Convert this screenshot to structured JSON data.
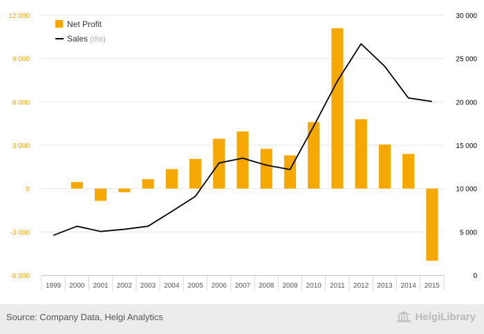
{
  "chart_data": {
    "type": "bar",
    "title": "",
    "xlabel": "",
    "ylabel": "",
    "categories": [
      "1999",
      "2000",
      "2001",
      "2002",
      "2003",
      "2004",
      "2005",
      "2006",
      "2007",
      "2008",
      "2009",
      "2010",
      "2011",
      "2012",
      "2013",
      "2014",
      "2015"
    ],
    "series": [
      {
        "name": "Net Profit",
        "type": "bar",
        "axis": "left",
        "color": "#f5a800",
        "values": [
          null,
          450,
          -850,
          -250,
          650,
          1350,
          2050,
          3450,
          3950,
          2750,
          2300,
          4600,
          11100,
          4800,
          3050,
          2400,
          -5000
        ]
      },
      {
        "name": "Sales",
        "type": "line",
        "axis": "right",
        "color": "#000000",
        "values": [
          4600,
          5650,
          5050,
          5300,
          5650,
          7350,
          9100,
          12950,
          13500,
          12700,
          12200,
          17200,
          22400,
          26700,
          24100,
          20450,
          20050
        ]
      }
    ],
    "y_left": {
      "range": [
        -6000,
        12000
      ],
      "ticks": [
        -6000,
        -3000,
        0,
        3000,
        6000,
        9000,
        12000
      ],
      "tick_labels": [
        "-6 000",
        "-3 000",
        "0",
        "3 000",
        "6 000",
        "9 000",
        "12 000"
      ],
      "label_color": "#f5a800"
    },
    "y_right": {
      "range": [
        0,
        30000
      ],
      "ticks": [
        0,
        5000,
        10000,
        15000,
        20000,
        25000,
        30000
      ],
      "tick_labels": [
        "0",
        "5 000",
        "10 000",
        "15 000",
        "20 000",
        "25 000",
        "30 000"
      ],
      "label_color": "#000000"
    },
    "grid": true,
    "legend": {
      "placement": "top-left",
      "items": [
        {
          "label": "Net Profit",
          "suffix": ""
        },
        {
          "label": "Sales",
          "suffix": "(rhs)"
        }
      ]
    }
  },
  "footer": {
    "source": "Source: Company Data, Helgi Analytics",
    "brand": "HelgiLibrary",
    "brand_icon": "library-building-icon"
  }
}
